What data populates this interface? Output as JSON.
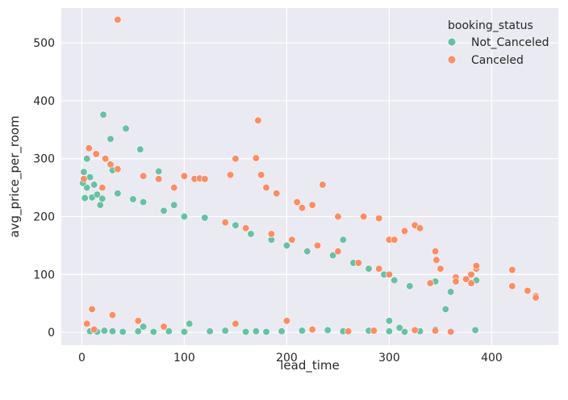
{
  "chart_data": {
    "type": "scatter",
    "xlabel": "lead_time",
    "ylabel": "avg_price_per_room",
    "xlim": [
      -20,
      465
    ],
    "ylim": [
      -22,
      560
    ],
    "x_ticks": [
      0,
      100,
      200,
      300,
      400
    ],
    "y_ticks": [
      0,
      100,
      200,
      300,
      400,
      500
    ],
    "grid": true,
    "background": "#eaeaf2",
    "legend": {
      "title": "booking_status",
      "placement": "top-right",
      "entries": [
        "Not_Canceled",
        "Canceled"
      ]
    },
    "series": [
      {
        "name": "Not_Canceled",
        "color": "#66c2a5",
        "points": [
          [
            2,
            277
          ],
          [
            5,
            250
          ],
          [
            8,
            268
          ],
          [
            10,
            233
          ],
          [
            12,
            255
          ],
          [
            15,
            238
          ],
          [
            18,
            220
          ],
          [
            20,
            231
          ],
          [
            21,
            376
          ],
          [
            28,
            334
          ],
          [
            43,
            352
          ],
          [
            57,
            316
          ],
          [
            75,
            278
          ],
          [
            5,
            300
          ],
          [
            1,
            258
          ],
          [
            3,
            232
          ],
          [
            30,
            280
          ],
          [
            35,
            240
          ],
          [
            50,
            230
          ],
          [
            60,
            225
          ],
          [
            90,
            220
          ],
          [
            80,
            210
          ],
          [
            100,
            200
          ],
          [
            120,
            198
          ],
          [
            150,
            185
          ],
          [
            165,
            170
          ],
          [
            185,
            160
          ],
          [
            200,
            150
          ],
          [
            220,
            140
          ],
          [
            245,
            133
          ],
          [
            255,
            160
          ],
          [
            265,
            120
          ],
          [
            280,
            110
          ],
          [
            295,
            100
          ],
          [
            305,
            90
          ],
          [
            320,
            80
          ],
          [
            345,
            88
          ],
          [
            360,
            70
          ],
          [
            385,
            90
          ],
          [
            384,
            4
          ],
          [
            8,
            2
          ],
          [
            15,
            1
          ],
          [
            22,
            3
          ],
          [
            30,
            2
          ],
          [
            40,
            1
          ],
          [
            55,
            2
          ],
          [
            70,
            1
          ],
          [
            85,
            2
          ],
          [
            100,
            1
          ],
          [
            125,
            2
          ],
          [
            140,
            3
          ],
          [
            160,
            1
          ],
          [
            170,
            2
          ],
          [
            180,
            1
          ],
          [
            195,
            2
          ],
          [
            215,
            3
          ],
          [
            240,
            4
          ],
          [
            255,
            2
          ],
          [
            280,
            3
          ],
          [
            300,
            2
          ],
          [
            315,
            1
          ],
          [
            330,
            2
          ],
          [
            345,
            5
          ],
          [
            355,
            40
          ],
          [
            300,
            20
          ],
          [
            310,
            8
          ],
          [
            105,
            15
          ],
          [
            60,
            10
          ]
        ]
      },
      {
        "name": "Canceled",
        "color": "#fc8d62",
        "points": [
          [
            35,
            540
          ],
          [
            172,
            366
          ],
          [
            7,
            318
          ],
          [
            14,
            308
          ],
          [
            23,
            300
          ],
          [
            28,
            290
          ],
          [
            35,
            282
          ],
          [
            2,
            265
          ],
          [
            20,
            250
          ],
          [
            60,
            270
          ],
          [
            75,
            265
          ],
          [
            90,
            250
          ],
          [
            100,
            270
          ],
          [
            110,
            265
          ],
          [
            115,
            266
          ],
          [
            120,
            265
          ],
          [
            145,
            272
          ],
          [
            150,
            300
          ],
          [
            170,
            301
          ],
          [
            175,
            272
          ],
          [
            180,
            250
          ],
          [
            190,
            240
          ],
          [
            210,
            225
          ],
          [
            215,
            215
          ],
          [
            225,
            220
          ],
          [
            235,
            255
          ],
          [
            250,
            200
          ],
          [
            275,
            200
          ],
          [
            290,
            197
          ],
          [
            300,
            160
          ],
          [
            305,
            160
          ],
          [
            315,
            175
          ],
          [
            325,
            185
          ],
          [
            330,
            180
          ],
          [
            345,
            140
          ],
          [
            346,
            125
          ],
          [
            350,
            110
          ],
          [
            365,
            95
          ],
          [
            375,
            92
          ],
          [
            380,
            100
          ],
          [
            385,
            110
          ],
          [
            385,
            115
          ],
          [
            420,
            108
          ],
          [
            420,
            80
          ],
          [
            435,
            72
          ],
          [
            443,
            63
          ],
          [
            443,
            60
          ],
          [
            380,
            85
          ],
          [
            365,
            88
          ],
          [
            340,
            85
          ],
          [
            300,
            100
          ],
          [
            290,
            110
          ],
          [
            270,
            120
          ],
          [
            250,
            140
          ],
          [
            230,
            150
          ],
          [
            205,
            160
          ],
          [
            185,
            170
          ],
          [
            160,
            180
          ],
          [
            140,
            190
          ],
          [
            10,
            40
          ],
          [
            30,
            30
          ],
          [
            55,
            20
          ],
          [
            80,
            10
          ],
          [
            150,
            15
          ],
          [
            200,
            20
          ],
          [
            225,
            5
          ],
          [
            260,
            2
          ],
          [
            285,
            3
          ],
          [
            325,
            4
          ],
          [
            345,
            3
          ],
          [
            360,
            1
          ],
          [
            5,
            15
          ],
          [
            12,
            5
          ]
        ]
      }
    ]
  }
}
